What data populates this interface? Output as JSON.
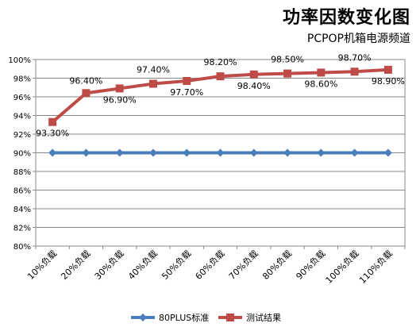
{
  "chart_data": {
    "type": "line",
    "title": "功率因数变化图",
    "subtitle": "PCPOP机箱电源频道",
    "xlabel": "",
    "ylabel": "",
    "categories": [
      "10%负载",
      "20%负载",
      "30%负载",
      "40%负载",
      "50%负载",
      "60%负载",
      "70%负载",
      "80%负载",
      "90%负载",
      "100%负载",
      "110%负载"
    ],
    "ylim": [
      80,
      100
    ],
    "yticks": [
      80,
      82,
      84,
      86,
      88,
      90,
      92,
      94,
      96,
      98,
      100
    ],
    "ytick_labels": [
      "80%",
      "82%",
      "84%",
      "86%",
      "88%",
      "90%",
      "92%",
      "94%",
      "96%",
      "98%",
      "100%"
    ],
    "grid": true,
    "legend_position": "bottom",
    "series": [
      {
        "name": "80PLUS标准",
        "color": "#4a7ebb",
        "marker": "diamond",
        "values": [
          90,
          90,
          90,
          90,
          90,
          90,
          90,
          90,
          90,
          90,
          90
        ],
        "labels": []
      },
      {
        "name": "测试结果",
        "color": "#be4b48",
        "marker": "square",
        "values": [
          93.3,
          96.4,
          96.9,
          97.4,
          97.7,
          98.2,
          98.4,
          98.5,
          98.6,
          98.7,
          98.9
        ],
        "labels": [
          "93.30%",
          "96.40%",
          "96.90%",
          "97.40%",
          "97.70%",
          "98.20%",
          "98.40%",
          "98.50%",
          "98.60%",
          "98.70%",
          "98.90%"
        ]
      }
    ]
  }
}
